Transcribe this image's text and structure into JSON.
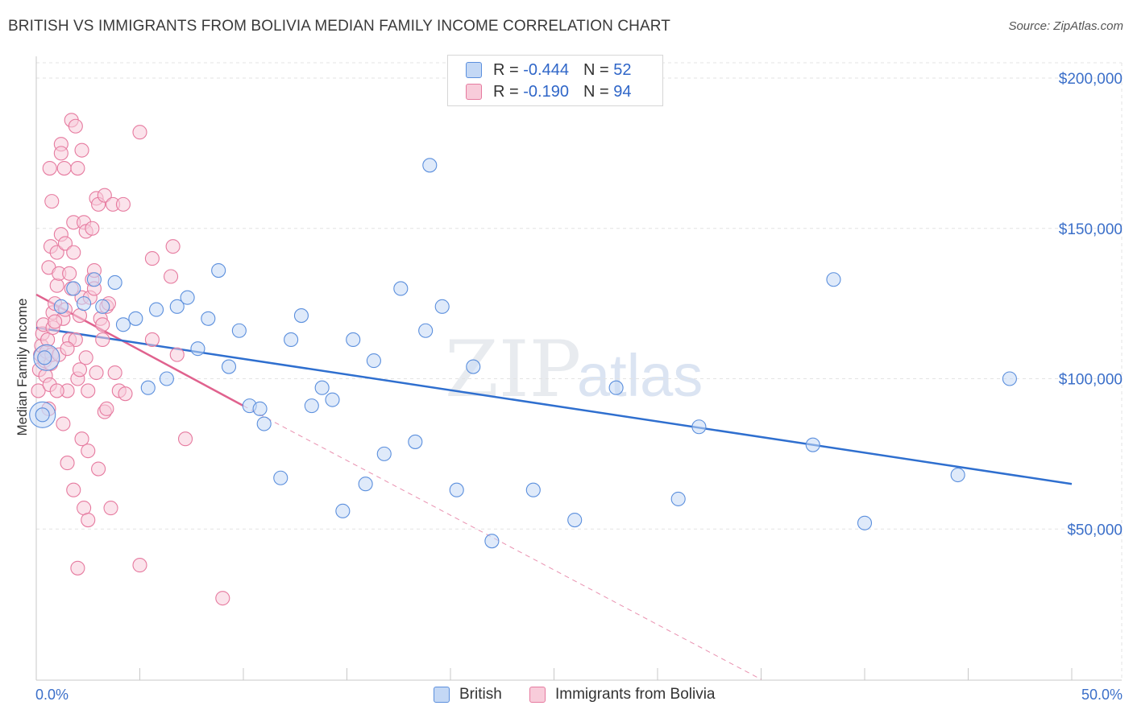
{
  "header": {
    "title": "BRITISH VS IMMIGRANTS FROM BOLIVIA MEDIAN FAMILY INCOME CORRELATION CHART",
    "source": "Source: ZipAtlas.com"
  },
  "watermark": {
    "zip": "ZIP",
    "atlas": "atlas"
  },
  "legend": {
    "rows": [
      {
        "r_label": "R = ",
        "r_value": "-0.444",
        "n_label": "N = ",
        "n_value": "52"
      },
      {
        "r_label": "R = ",
        "r_value": "-0.190",
        "n_label": "N = ",
        "n_value": "94"
      }
    ]
  },
  "chart_data": {
    "type": "scatter",
    "title": "BRITISH VS IMMIGRANTS FROM BOLIVIA MEDIAN FAMILY INCOME CORRELATION CHART",
    "xlabel": "",
    "ylabel": "Median Family Income",
    "xlim": [
      0,
      50
    ],
    "ylim": [
      0,
      210000
    ],
    "x_tick_labels": [
      "0.0%",
      "50.0%"
    ],
    "y_ticks": [
      50000,
      100000,
      150000,
      200000
    ],
    "y_tick_labels": [
      "$50,000",
      "$100,000",
      "$150,000",
      "$200,000"
    ],
    "grid": true,
    "legend_position": "top-center",
    "colors": {
      "British": "#5b8fdd",
      "British_fill": "#c4d8f5",
      "Immigrants from Bolivia": "#e67a9f",
      "Immigrants from Bolivia_fill": "#f8ccda",
      "British_line": "#2f6fcf",
      "Immigrants from Bolivia_line": "#e0628e",
      "tick_text": "#3b6fc9"
    },
    "series": [
      {
        "name": "British",
        "r": -0.444,
        "n": 52,
        "trend": {
          "x": [
            0,
            50
          ],
          "y": [
            117000,
            65000
          ]
        },
        "points": [
          [
            0.3,
            88000
          ],
          [
            0.4,
            107000
          ],
          [
            1.2,
            124000
          ],
          [
            1.8,
            130000
          ],
          [
            2.3,
            125000
          ],
          [
            2.8,
            133000
          ],
          [
            3.2,
            124000
          ],
          [
            3.8,
            132000
          ],
          [
            4.2,
            118000
          ],
          [
            4.8,
            120000
          ],
          [
            5.4,
            97000
          ],
          [
            5.8,
            123000
          ],
          [
            6.3,
            100000
          ],
          [
            6.8,
            124000
          ],
          [
            7.3,
            127000
          ],
          [
            7.8,
            110000
          ],
          [
            8.3,
            120000
          ],
          [
            8.8,
            136000
          ],
          [
            9.3,
            104000
          ],
          [
            9.8,
            116000
          ],
          [
            10.3,
            91000
          ],
          [
            10.8,
            90000
          ],
          [
            11.0,
            85000
          ],
          [
            11.8,
            67000
          ],
          [
            12.3,
            113000
          ],
          [
            12.8,
            121000
          ],
          [
            13.3,
            91000
          ],
          [
            13.8,
            97000
          ],
          [
            14.3,
            93000
          ],
          [
            14.8,
            56000
          ],
          [
            15.3,
            113000
          ],
          [
            15.9,
            65000
          ],
          [
            16.3,
            106000
          ],
          [
            16.8,
            75000
          ],
          [
            17.6,
            130000
          ],
          [
            18.3,
            79000
          ],
          [
            18.8,
            116000
          ],
          [
            19.0,
            171000
          ],
          [
            19.6,
            124000
          ],
          [
            20.3,
            63000
          ],
          [
            21.1,
            104000
          ],
          [
            22.0,
            46000
          ],
          [
            24.0,
            63000
          ],
          [
            26.0,
            53000
          ],
          [
            28.0,
            97000
          ],
          [
            31.0,
            60000
          ],
          [
            32.0,
            84000
          ],
          [
            37.5,
            78000
          ],
          [
            38.5,
            133000
          ],
          [
            40.0,
            52000
          ],
          [
            44.5,
            68000
          ],
          [
            47.0,
            100000
          ]
        ],
        "large_points": [
          [
            0.3,
            88000
          ],
          [
            0.5,
            107000
          ]
        ]
      },
      {
        "name": "Immigrants from Bolivia",
        "r": -0.19,
        "n": 94,
        "trend": {
          "x": [
            0,
            10
          ],
          "y": [
            128000,
            91000
          ]
        },
        "trend_extension": {
          "x": [
            10,
            35
          ],
          "y": [
            91000,
            0
          ]
        },
        "points": [
          [
            0.1,
            96000
          ],
          [
            0.15,
            103000
          ],
          [
            0.2,
            108000
          ],
          [
            0.25,
            111000
          ],
          [
            0.3,
            115000
          ],
          [
            0.35,
            118000
          ],
          [
            0.4,
            106000
          ],
          [
            0.45,
            101000
          ],
          [
            0.5,
            109000
          ],
          [
            0.55,
            113000
          ],
          [
            0.6,
            90000
          ],
          [
            0.65,
            98000
          ],
          [
            0.7,
            105000
          ],
          [
            0.75,
            108000
          ],
          [
            0.8,
            117000
          ],
          [
            0.6,
            137000
          ],
          [
            0.7,
            144000
          ],
          [
            0.65,
            170000
          ],
          [
            0.75,
            159000
          ],
          [
            0.8,
            122000
          ],
          [
            0.9,
            125000
          ],
          [
            1.0,
            131000
          ],
          [
            1.0,
            142000
          ],
          [
            1.1,
            135000
          ],
          [
            1.1,
            108000
          ],
          [
            1.2,
            178000
          ],
          [
            1.2,
            175000
          ],
          [
            1.2,
            148000
          ],
          [
            1.3,
            85000
          ],
          [
            1.3,
            120000
          ],
          [
            1.35,
            170000
          ],
          [
            1.4,
            123000
          ],
          [
            1.4,
            145000
          ],
          [
            1.5,
            96000
          ],
          [
            1.5,
            72000
          ],
          [
            1.6,
            113000
          ],
          [
            1.6,
            135000
          ],
          [
            1.7,
            186000
          ],
          [
            1.7,
            130000
          ],
          [
            1.8,
            152000
          ],
          [
            1.8,
            63000
          ],
          [
            1.8,
            142000
          ],
          [
            1.9,
            184000
          ],
          [
            1.9,
            113000
          ],
          [
            2.0,
            170000
          ],
          [
            2.0,
            100000
          ],
          [
            2.0,
            37000
          ],
          [
            2.1,
            121000
          ],
          [
            2.2,
            176000
          ],
          [
            2.2,
            127000
          ],
          [
            2.2,
            80000
          ],
          [
            2.3,
            152000
          ],
          [
            2.3,
            57000
          ],
          [
            2.4,
            149000
          ],
          [
            2.4,
            107000
          ],
          [
            2.5,
            96000
          ],
          [
            2.5,
            76000
          ],
          [
            2.5,
            53000
          ],
          [
            2.6,
            127000
          ],
          [
            2.7,
            150000
          ],
          [
            2.7,
            133000
          ],
          [
            2.8,
            136000
          ],
          [
            2.8,
            130000
          ],
          [
            2.9,
            102000
          ],
          [
            2.9,
            160000
          ],
          [
            3.0,
            158000
          ],
          [
            3.0,
            70000
          ],
          [
            3.1,
            120000
          ],
          [
            3.2,
            118000
          ],
          [
            3.2,
            113000
          ],
          [
            3.3,
            89000
          ],
          [
            3.3,
            161000
          ],
          [
            3.4,
            124000
          ],
          [
            3.4,
            90000
          ],
          [
            3.5,
            125000
          ],
          [
            3.6,
            57000
          ],
          [
            3.7,
            158000
          ],
          [
            3.8,
            102000
          ],
          [
            4.0,
            96000
          ],
          [
            4.2,
            158000
          ],
          [
            4.3,
            95000
          ],
          [
            5.0,
            182000
          ],
          [
            5.0,
            38000
          ],
          [
            5.6,
            140000
          ],
          [
            5.6,
            113000
          ],
          [
            6.5,
            134000
          ],
          [
            6.6,
            144000
          ],
          [
            6.8,
            108000
          ],
          [
            7.2,
            80000
          ],
          [
            9.0,
            27000
          ],
          [
            1.5,
            110000
          ],
          [
            1.0,
            96000
          ],
          [
            0.9,
            119000
          ],
          [
            2.1,
            103000
          ]
        ]
      }
    ]
  },
  "bottom_legend": {
    "items": [
      {
        "label": "British"
      },
      {
        "label": "Immigrants from Bolivia"
      }
    ]
  }
}
